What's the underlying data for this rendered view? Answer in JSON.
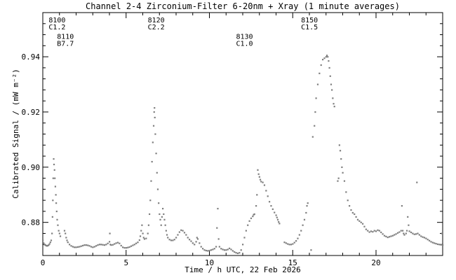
{
  "chart_data": {
    "type": "scatter",
    "title": "Channel 2-4   Zirconium-Filter   6-20nm + Xray   (1 minute averages)",
    "xlabel": "Time / h UTC, 22 Feb 2026",
    "ylabel": "Calibrated Signal / (mW m⁻²)",
    "xlim": [
      0,
      24
    ],
    "ylim": [
      0.868,
      0.956
    ],
    "x_ticks": [
      0,
      5,
      10,
      15,
      20
    ],
    "y_ticks": [
      0.88,
      0.9,
      0.92,
      0.94
    ],
    "y_tick_labels": [
      "0.88",
      "0.90",
      "0.92",
      "0.94"
    ],
    "grid": false,
    "marker_color": "#7f7f7f",
    "annotations": [
      {
        "x": 0.35,
        "y": 0.9525,
        "lines": [
          "8100",
          "C1.2"
        ]
      },
      {
        "x": 0.85,
        "y": 0.9465,
        "lines": [
          "8110",
          "B7.7"
        ]
      },
      {
        "x": 6.3,
        "y": 0.9525,
        "lines": [
          "8120",
          "C2.2"
        ]
      },
      {
        "x": 11.6,
        "y": 0.9465,
        "lines": [
          "8130",
          "C1.0"
        ]
      },
      {
        "x": 15.5,
        "y": 0.9525,
        "lines": [
          "8150",
          "C1.5"
        ]
      }
    ],
    "series": [
      {
        "points": [
          [
            0.0,
            0.8735
          ],
          [
            0.05,
            0.8725
          ],
          [
            0.1,
            0.872
          ],
          [
            0.15,
            0.8718
          ],
          [
            0.2,
            0.8716
          ],
          [
            0.25,
            0.8715
          ],
          [
            0.3,
            0.8716
          ],
          [
            0.35,
            0.8718
          ],
          [
            0.4,
            0.8722
          ],
          [
            0.45,
            0.8728
          ],
          [
            0.5,
            0.8735
          ],
          [
            0.55,
            0.876
          ],
          [
            0.58,
            0.882
          ],
          [
            0.6,
            0.888
          ],
          [
            0.62,
            0.896
          ],
          [
            0.65,
            0.903
          ],
          [
            0.67,
            0.901
          ],
          [
            0.7,
            0.899
          ],
          [
            0.72,
            0.896
          ],
          [
            0.75,
            0.893
          ],
          [
            0.78,
            0.89
          ],
          [
            0.8,
            0.887
          ],
          [
            0.83,
            0.884
          ],
          [
            0.86,
            0.881
          ],
          [
            0.9,
            0.879
          ],
          [
            0.95,
            0.877
          ],
          [
            1.0,
            0.876
          ],
          [
            1.05,
            0.875
          ],
          [
            1.3,
            0.877
          ],
          [
            1.35,
            0.876
          ],
          [
            1.4,
            0.8745
          ],
          [
            1.45,
            0.8735
          ],
          [
            1.5,
            0.8728
          ],
          [
            1.6,
            0.872
          ],
          [
            1.7,
            0.8715
          ],
          [
            1.8,
            0.8712
          ],
          [
            1.9,
            0.871
          ],
          [
            2.0,
            0.871
          ],
          [
            2.1,
            0.8711
          ],
          [
            2.2,
            0.8712
          ],
          [
            2.3,
            0.8714
          ],
          [
            2.4,
            0.8716
          ],
          [
            2.5,
            0.8718
          ],
          [
            2.6,
            0.8718
          ],
          [
            2.7,
            0.8717
          ],
          [
            2.8,
            0.8715
          ],
          [
            2.9,
            0.8712
          ],
          [
            3.0,
            0.871
          ],
          [
            3.1,
            0.8712
          ],
          [
            3.2,
            0.8715
          ],
          [
            3.3,
            0.8718
          ],
          [
            3.4,
            0.872
          ],
          [
            3.5,
            0.872
          ],
          [
            3.6,
            0.8719
          ],
          [
            3.7,
            0.8718
          ],
          [
            3.8,
            0.872
          ],
          [
            3.9,
            0.8724
          ],
          [
            4.0,
            0.873
          ],
          [
            4.02,
            0.876
          ],
          [
            4.05,
            0.872
          ],
          [
            4.1,
            0.8718
          ],
          [
            4.2,
            0.8719
          ],
          [
            4.3,
            0.8722
          ],
          [
            4.4,
            0.8725
          ],
          [
            4.5,
            0.8727
          ],
          [
            4.6,
            0.8724
          ],
          [
            4.7,
            0.8716
          ],
          [
            4.8,
            0.871
          ],
          [
            4.9,
            0.8708
          ],
          [
            5.0,
            0.8708
          ],
          [
            5.1,
            0.8709
          ],
          [
            5.2,
            0.8711
          ],
          [
            5.3,
            0.8714
          ],
          [
            5.4,
            0.8717
          ],
          [
            5.5,
            0.872
          ],
          [
            5.6,
            0.8724
          ],
          [
            5.7,
            0.8728
          ],
          [
            5.8,
            0.8736
          ],
          [
            5.85,
            0.875
          ],
          [
            5.9,
            0.877
          ],
          [
            5.95,
            0.879
          ],
          [
            6.0,
            0.876
          ],
          [
            6.05,
            0.8745
          ],
          [
            6.1,
            0.874
          ],
          [
            6.2,
            0.8742
          ],
          [
            6.3,
            0.876
          ],
          [
            6.35,
            0.879
          ],
          [
            6.4,
            0.883
          ],
          [
            6.45,
            0.888
          ],
          [
            6.5,
            0.895
          ],
          [
            6.55,
            0.902
          ],
          [
            6.6,
            0.909
          ],
          [
            6.65,
            0.915
          ],
          [
            6.68,
            0.92
          ],
          [
            6.7,
            0.9215
          ],
          [
            6.72,
            0.918
          ],
          [
            6.75,
            0.912
          ],
          [
            6.8,
            0.905
          ],
          [
            6.85,
            0.898
          ],
          [
            6.9,
            0.892
          ],
          [
            6.95,
            0.887
          ],
          [
            7.0,
            0.883
          ],
          [
            7.05,
            0.881
          ],
          [
            7.1,
            0.879
          ],
          [
            7.15,
            0.882
          ],
          [
            7.2,
            0.885
          ],
          [
            7.25,
            0.883
          ],
          [
            7.3,
            0.881
          ],
          [
            7.35,
            0.879
          ],
          [
            7.4,
            0.877
          ],
          [
            7.45,
            0.8755
          ],
          [
            7.5,
            0.8745
          ],
          [
            7.6,
            0.8738
          ],
          [
            7.7,
            0.8735
          ],
          [
            7.8,
            0.8735
          ],
          [
            7.9,
            0.8738
          ],
          [
            8.0,
            0.8745
          ],
          [
            8.1,
            0.8755
          ],
          [
            8.2,
            0.8765
          ],
          [
            8.3,
            0.8772
          ],
          [
            8.4,
            0.877
          ],
          [
            8.5,
            0.8763
          ],
          [
            8.6,
            0.8755
          ],
          [
            8.7,
            0.8745
          ],
          [
            8.8,
            0.8738
          ],
          [
            8.9,
            0.8732
          ],
          [
            9.0,
            0.8725
          ],
          [
            9.1,
            0.872
          ],
          [
            9.2,
            0.873
          ],
          [
            9.25,
            0.8745
          ],
          [
            9.3,
            0.874
          ],
          [
            9.4,
            0.8725
          ],
          [
            9.5,
            0.8712
          ],
          [
            9.6,
            0.8705
          ],
          [
            9.7,
            0.87
          ],
          [
            9.8,
            0.8698
          ],
          [
            9.9,
            0.8697
          ],
          [
            10.0,
            0.8698
          ],
          [
            10.1,
            0.87
          ],
          [
            10.2,
            0.8702
          ],
          [
            10.3,
            0.8705
          ],
          [
            10.4,
            0.8712
          ],
          [
            10.45,
            0.878
          ],
          [
            10.5,
            0.885
          ],
          [
            10.55,
            0.874
          ],
          [
            10.6,
            0.8712
          ],
          [
            10.7,
            0.8705
          ],
          [
            10.8,
            0.8702
          ],
          [
            10.9,
            0.87
          ],
          [
            11.0,
            0.87
          ],
          [
            11.1,
            0.8702
          ],
          [
            11.2,
            0.8706
          ],
          [
            11.3,
            0.8702
          ],
          [
            11.4,
            0.8697
          ],
          [
            11.5,
            0.8693
          ],
          [
            11.6,
            0.869
          ],
          [
            11.7,
            0.8688
          ],
          [
            11.8,
            0.869
          ],
          [
            11.9,
            0.87
          ],
          [
            12.0,
            0.872
          ],
          [
            12.1,
            0.8745
          ],
          [
            12.2,
            0.877
          ],
          [
            12.3,
            0.879
          ],
          [
            12.4,
            0.8805
          ],
          [
            12.5,
            0.8815
          ],
          [
            12.6,
            0.8822
          ],
          [
            12.65,
            0.8828
          ],
          [
            12.7,
            0.883
          ],
          [
            12.8,
            0.886
          ],
          [
            12.85,
            0.89
          ],
          [
            12.9,
            0.899
          ],
          [
            12.95,
            0.8975
          ],
          [
            13.0,
            0.8965
          ],
          [
            13.05,
            0.8955
          ],
          [
            13.1,
            0.8948
          ],
          [
            13.2,
            0.8945
          ],
          [
            13.3,
            0.8935
          ],
          [
            13.4,
            0.8915
          ],
          [
            13.5,
            0.8895
          ],
          [
            13.6,
            0.8875
          ],
          [
            13.7,
            0.886
          ],
          [
            13.8,
            0.8848
          ],
          [
            13.9,
            0.8836
          ],
          [
            14.0,
            0.8826
          ],
          [
            14.05,
            0.8818
          ],
          [
            14.1,
            0.881
          ],
          [
            14.15,
            0.8802
          ],
          [
            14.2,
            0.8796
          ],
          [
            14.5,
            0.8728
          ],
          [
            14.6,
            0.8725
          ],
          [
            14.7,
            0.8722
          ],
          [
            14.8,
            0.872
          ],
          [
            14.9,
            0.872
          ],
          [
            15.0,
            0.8722
          ],
          [
            15.1,
            0.8727
          ],
          [
            15.2,
            0.8733
          ],
          [
            15.3,
            0.8742
          ],
          [
            15.4,
            0.8755
          ],
          [
            15.5,
            0.877
          ],
          [
            15.6,
            0.879
          ],
          [
            15.7,
            0.881
          ],
          [
            15.8,
            0.8835
          ],
          [
            15.85,
            0.886
          ],
          [
            15.9,
            0.887
          ],
          [
            16.1,
            0.87
          ],
          [
            16.2,
            0.911
          ],
          [
            16.3,
            0.915
          ],
          [
            16.35,
            0.92
          ],
          [
            16.4,
            0.925
          ],
          [
            16.5,
            0.93
          ],
          [
            16.6,
            0.934
          ],
          [
            16.7,
            0.937
          ],
          [
            16.8,
            0.939
          ],
          [
            16.9,
            0.9395
          ],
          [
            17.0,
            0.94
          ],
          [
            17.05,
            0.9405
          ],
          [
            17.1,
            0.94
          ],
          [
            17.15,
            0.9385
          ],
          [
            17.2,
            0.936
          ],
          [
            17.25,
            0.933
          ],
          [
            17.3,
            0.93
          ],
          [
            17.35,
            0.928
          ],
          [
            17.4,
            0.925
          ],
          [
            17.45,
            0.923
          ],
          [
            17.5,
            0.922
          ],
          [
            17.7,
            0.895
          ],
          [
            17.75,
            0.896
          ],
          [
            17.8,
            0.908
          ],
          [
            17.85,
            0.906
          ],
          [
            17.9,
            0.903
          ],
          [
            17.95,
            0.9
          ],
          [
            18.0,
            0.898
          ],
          [
            18.1,
            0.895
          ],
          [
            18.2,
            0.891
          ],
          [
            18.3,
            0.888
          ],
          [
            18.4,
            0.886
          ],
          [
            18.5,
            0.8845
          ],
          [
            18.6,
            0.8835
          ],
          [
            18.7,
            0.883
          ],
          [
            18.8,
            0.882
          ],
          [
            18.9,
            0.881
          ],
          [
            19.0,
            0.8805
          ],
          [
            19.1,
            0.88
          ],
          [
            19.2,
            0.8795
          ],
          [
            19.3,
            0.8785
          ],
          [
            19.4,
            0.8775
          ],
          [
            19.5,
            0.877
          ],
          [
            19.6,
            0.8765
          ],
          [
            19.7,
            0.8768
          ],
          [
            19.8,
            0.8766
          ],
          [
            19.9,
            0.877
          ],
          [
            20.0,
            0.8768
          ],
          [
            20.1,
            0.8772
          ],
          [
            20.2,
            0.877
          ],
          [
            20.3,
            0.8764
          ],
          [
            20.4,
            0.8758
          ],
          [
            20.5,
            0.8752
          ],
          [
            20.6,
            0.8749
          ],
          [
            20.7,
            0.8746
          ],
          [
            20.8,
            0.8748
          ],
          [
            20.9,
            0.875
          ],
          [
            21.0,
            0.8752
          ],
          [
            21.1,
            0.8755
          ],
          [
            21.2,
            0.8758
          ],
          [
            21.3,
            0.8762
          ],
          [
            21.4,
            0.8765
          ],
          [
            21.5,
            0.877
          ],
          [
            21.55,
            0.886
          ],
          [
            21.6,
            0.877
          ],
          [
            21.65,
            0.876
          ],
          [
            21.7,
            0.8755
          ],
          [
            21.8,
            0.876
          ],
          [
            21.85,
            0.877
          ],
          [
            21.9,
            0.882
          ],
          [
            21.95,
            0.879
          ],
          [
            22.0,
            0.8768
          ],
          [
            22.1,
            0.8764
          ],
          [
            22.2,
            0.876
          ],
          [
            22.3,
            0.8757
          ],
          [
            22.4,
            0.8758
          ],
          [
            22.45,
            0.8945
          ],
          [
            22.5,
            0.876
          ],
          [
            22.6,
            0.8755
          ],
          [
            22.7,
            0.875
          ],
          [
            22.8,
            0.8747
          ],
          [
            22.9,
            0.8745
          ],
          [
            23.0,
            0.8742
          ],
          [
            23.1,
            0.8738
          ],
          [
            23.2,
            0.8734
          ],
          [
            23.3,
            0.873
          ],
          [
            23.4,
            0.8727
          ],
          [
            23.5,
            0.8725
          ],
          [
            23.6,
            0.8723
          ],
          [
            23.7,
            0.8721
          ],
          [
            23.8,
            0.872
          ],
          [
            23.9,
            0.8719
          ],
          [
            23.95,
            0.876
          ],
          [
            24.0,
            0.8718
          ]
        ]
      }
    ]
  }
}
